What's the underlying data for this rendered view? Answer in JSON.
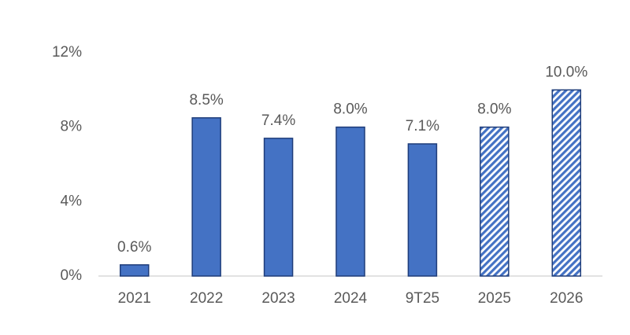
{
  "chart_data": {
    "type": "bar",
    "categories": [
      "2021",
      "2022",
      "2023",
      "2024",
      "9T25",
      "2025",
      "2026"
    ],
    "values": [
      0.6,
      8.5,
      7.4,
      8.0,
      7.1,
      8.0,
      10.0
    ],
    "value_labels": [
      "0.6%",
      "8.5%",
      "7.4%",
      "8.0%",
      "7.1%",
      "8.0%",
      "10.0%"
    ],
    "hatched": [
      false,
      false,
      false,
      false,
      false,
      true,
      true
    ],
    "color": "#4472c4",
    "ylim": [
      0,
      12
    ],
    "yticks": [
      {
        "value": 0,
        "label": "0%"
      },
      {
        "value": 4,
        "label": "4%"
      },
      {
        "value": 8,
        "label": "8%"
      },
      {
        "value": 12,
        "label": "12%"
      }
    ],
    "grid": false
  }
}
